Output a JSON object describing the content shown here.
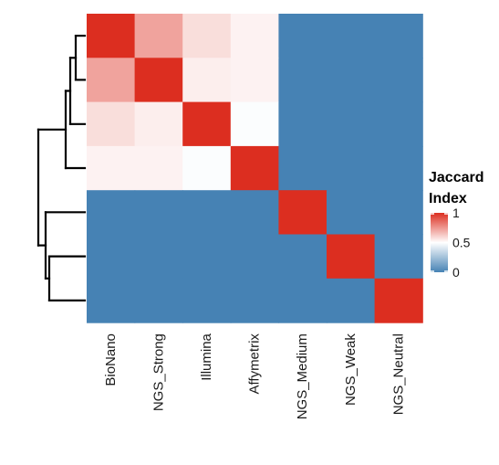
{
  "chart_data": {
    "type": "heatmap",
    "title": "",
    "xlabel": "",
    "ylabel": "",
    "categories": [
      "BioNano",
      "NGS_Strong",
      "Illumina",
      "Affymetrix",
      "NGS_Medium",
      "NGS_Weak",
      "NGS_Neutral"
    ],
    "rows": [
      "BioNano",
      "NGS_Strong",
      "Illumina",
      "Affymetrix",
      "NGS_Medium",
      "NGS_Weak",
      "NGS_Neutral"
    ],
    "values": [
      [
        1.0,
        0.72,
        0.58,
        0.53,
        0.0,
        0.0,
        0.0
      ],
      [
        0.72,
        1.0,
        0.54,
        0.53,
        0.0,
        0.0,
        0.0
      ],
      [
        0.58,
        0.54,
        1.0,
        0.49,
        0.0,
        0.0,
        0.0
      ],
      [
        0.53,
        0.53,
        0.49,
        1.0,
        0.0,
        0.0,
        0.0
      ],
      [
        0.0,
        0.0,
        0.0,
        0.0,
        1.0,
        0.0,
        0.0
      ],
      [
        0.0,
        0.0,
        0.0,
        0.0,
        0.0,
        1.0,
        0.0
      ],
      [
        0.0,
        0.0,
        0.0,
        0.0,
        0.0,
        0.0,
        1.0
      ]
    ],
    "color_scale": {
      "low": "#4682b4",
      "mid": "#ffffff",
      "high": "#dc2e20",
      "domain": [
        0,
        0.5,
        1
      ]
    },
    "legend": {
      "title_line1": "Jaccard",
      "title_line2": "Index",
      "ticks": [
        1,
        0.5,
        0
      ],
      "tick_labels": [
        "1",
        "0.5",
        "0"
      ],
      "position": "right"
    },
    "dendrogram": "row-left",
    "grid": false
  }
}
